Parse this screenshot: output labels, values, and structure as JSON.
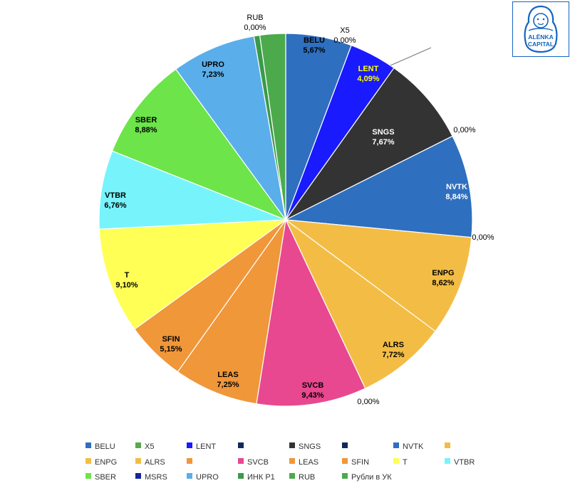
{
  "chart_data": {
    "type": "pie",
    "slices": [
      {
        "name": "BELU",
        "value": 5.67,
        "color": "#2f6fbf",
        "label": [
          "BELU",
          "5,67%"
        ],
        "label_color": "#000000",
        "inside": true
      },
      {
        "name": "X5",
        "value": 0.0,
        "color": "#5aa84a",
        "label": [
          "X5",
          "0,00%"
        ],
        "inside": false
      },
      {
        "name": "LENT",
        "value": 4.09,
        "color": "#1a1aff",
        "label": [
          "LENT",
          "4,09%"
        ],
        "label_color": "#ffff00",
        "inside": true
      },
      {
        "name": "",
        "value": 0.0,
        "color": "#14285a",
        "label": [],
        "inside": false
      },
      {
        "name": "SNGS",
        "value": 7.67,
        "color": "#333333",
        "label": [
          "SNGS",
          "7,67%"
        ],
        "label_color": "#ffffff",
        "inside": true
      },
      {
        "name": "",
        "value": 0.0,
        "color": "#14285a",
        "label": [
          "0,00%"
        ],
        "inside": false
      },
      {
        "name": "NVTK",
        "value": 8.84,
        "color": "#2f6fbf",
        "label": [
          "NVTK",
          "8,84%"
        ],
        "label_color": "#ffffff",
        "inside": true
      },
      {
        "name": "",
        "value": 0.0,
        "color": "#f3bd45",
        "label": [
          "0,00%"
        ],
        "inside": false
      },
      {
        "name": "ENPG",
        "value": 8.62,
        "color": "#f3bd45",
        "label": [
          "ENPG",
          "8,62%"
        ],
        "label_color": "#000000",
        "inside": true
      },
      {
        "name": "ALRS",
        "value": 7.72,
        "color": "#f3bd45",
        "label": [
          "ALRS",
          "7,72%"
        ],
        "label_color": "#000000",
        "inside": true
      },
      {
        "name": "",
        "value": 0.0,
        "color": "#f0973a",
        "label": [
          "0,00%"
        ],
        "inside": false
      },
      {
        "name": "SVCB",
        "value": 9.43,
        "color": "#e8488f",
        "label": [
          "SVCB",
          "9,43%"
        ],
        "label_color": "#000000",
        "inside": true
      },
      {
        "name": "LEAS",
        "value": 7.25,
        "color": "#f0973a",
        "label": [
          "LEAS",
          "7,25%"
        ],
        "label_color": "#000000",
        "inside": true
      },
      {
        "name": "SFIN",
        "value": 5.15,
        "color": "#f0973a",
        "label": [
          "SFIN",
          "5,15%"
        ],
        "label_color": "#000000",
        "inside": true
      },
      {
        "name": "T",
        "value": 9.1,
        "color": "#ffff55",
        "label": [
          "T",
          "9,10%"
        ],
        "label_color": "#000000",
        "inside": true
      },
      {
        "name": "VTBR",
        "value": 6.76,
        "color": "#77f4fb",
        "label": [
          "VTBR",
          "6,76%"
        ],
        "label_color": "#000000",
        "inside": true
      },
      {
        "name": "SBER",
        "value": 8.88,
        "color": "#6ce44a",
        "label": [
          "SBER",
          "8,88%"
        ],
        "label_color": "#000000",
        "inside": true
      },
      {
        "name": "MSRS",
        "value": 0.0,
        "color": "#14289a",
        "label": [],
        "inside": false
      },
      {
        "name": "UPRO",
        "value": 7.23,
        "color": "#5aaeea",
        "label": [
          "UPRO",
          "7,23%"
        ],
        "label_color": "#000000",
        "inside": true
      },
      {
        "name": "ИНК Р1",
        "value": 0.5,
        "color": "#3a9a4a",
        "label": [],
        "inside": false
      },
      {
        "name": "RUB",
        "value": 0.0,
        "color": "#4caa4c",
        "label": [
          "RUB",
          "0,00%"
        ],
        "inside": false
      },
      {
        "name": "Рубли в УК",
        "value": 2.2,
        "color": "#4caa4c",
        "label": [],
        "inside": false
      }
    ],
    "legend_position": "bottom",
    "legend": [
      {
        "label": "BELU",
        "color": "#2f6fbf"
      },
      {
        "label": "X5",
        "color": "#5aa84a"
      },
      {
        "label": "LENT",
        "color": "#1a1aff"
      },
      {
        "label": "",
        "color": "#14285a"
      },
      {
        "label": "SNGS",
        "color": "#333333"
      },
      {
        "label": "",
        "color": "#14285a"
      },
      {
        "label": "NVTK",
        "color": "#2f6fbf"
      },
      {
        "label": "",
        "color": "#f3bd45"
      },
      {
        "label": "ENPG",
        "color": "#f3bd45"
      },
      {
        "label": "ALRS",
        "color": "#f3bd45"
      },
      {
        "label": "",
        "color": "#f0973a"
      },
      {
        "label": "SVCB",
        "color": "#e8488f"
      },
      {
        "label": "LEAS",
        "color": "#f0973a"
      },
      {
        "label": "SFIN",
        "color": "#f0973a"
      },
      {
        "label": "T",
        "color": "#ffff55"
      },
      {
        "label": "VTBR",
        "color": "#77f4fb"
      },
      {
        "label": "SBER",
        "color": "#6ce44a"
      },
      {
        "label": "MSRS",
        "color": "#14289a"
      },
      {
        "label": "UPRO",
        "color": "#5aaeea"
      },
      {
        "label": "ИНК Р1",
        "color": "#3a9a4a"
      },
      {
        "label": "RUB",
        "color": "#4caa4c"
      },
      {
        "label": "Рубли в УК",
        "color": "#4caa4c"
      }
    ]
  },
  "logo": {
    "line1": "ALЁNKA",
    "line2": "CAPITAL",
    "color": "#1565c0"
  }
}
